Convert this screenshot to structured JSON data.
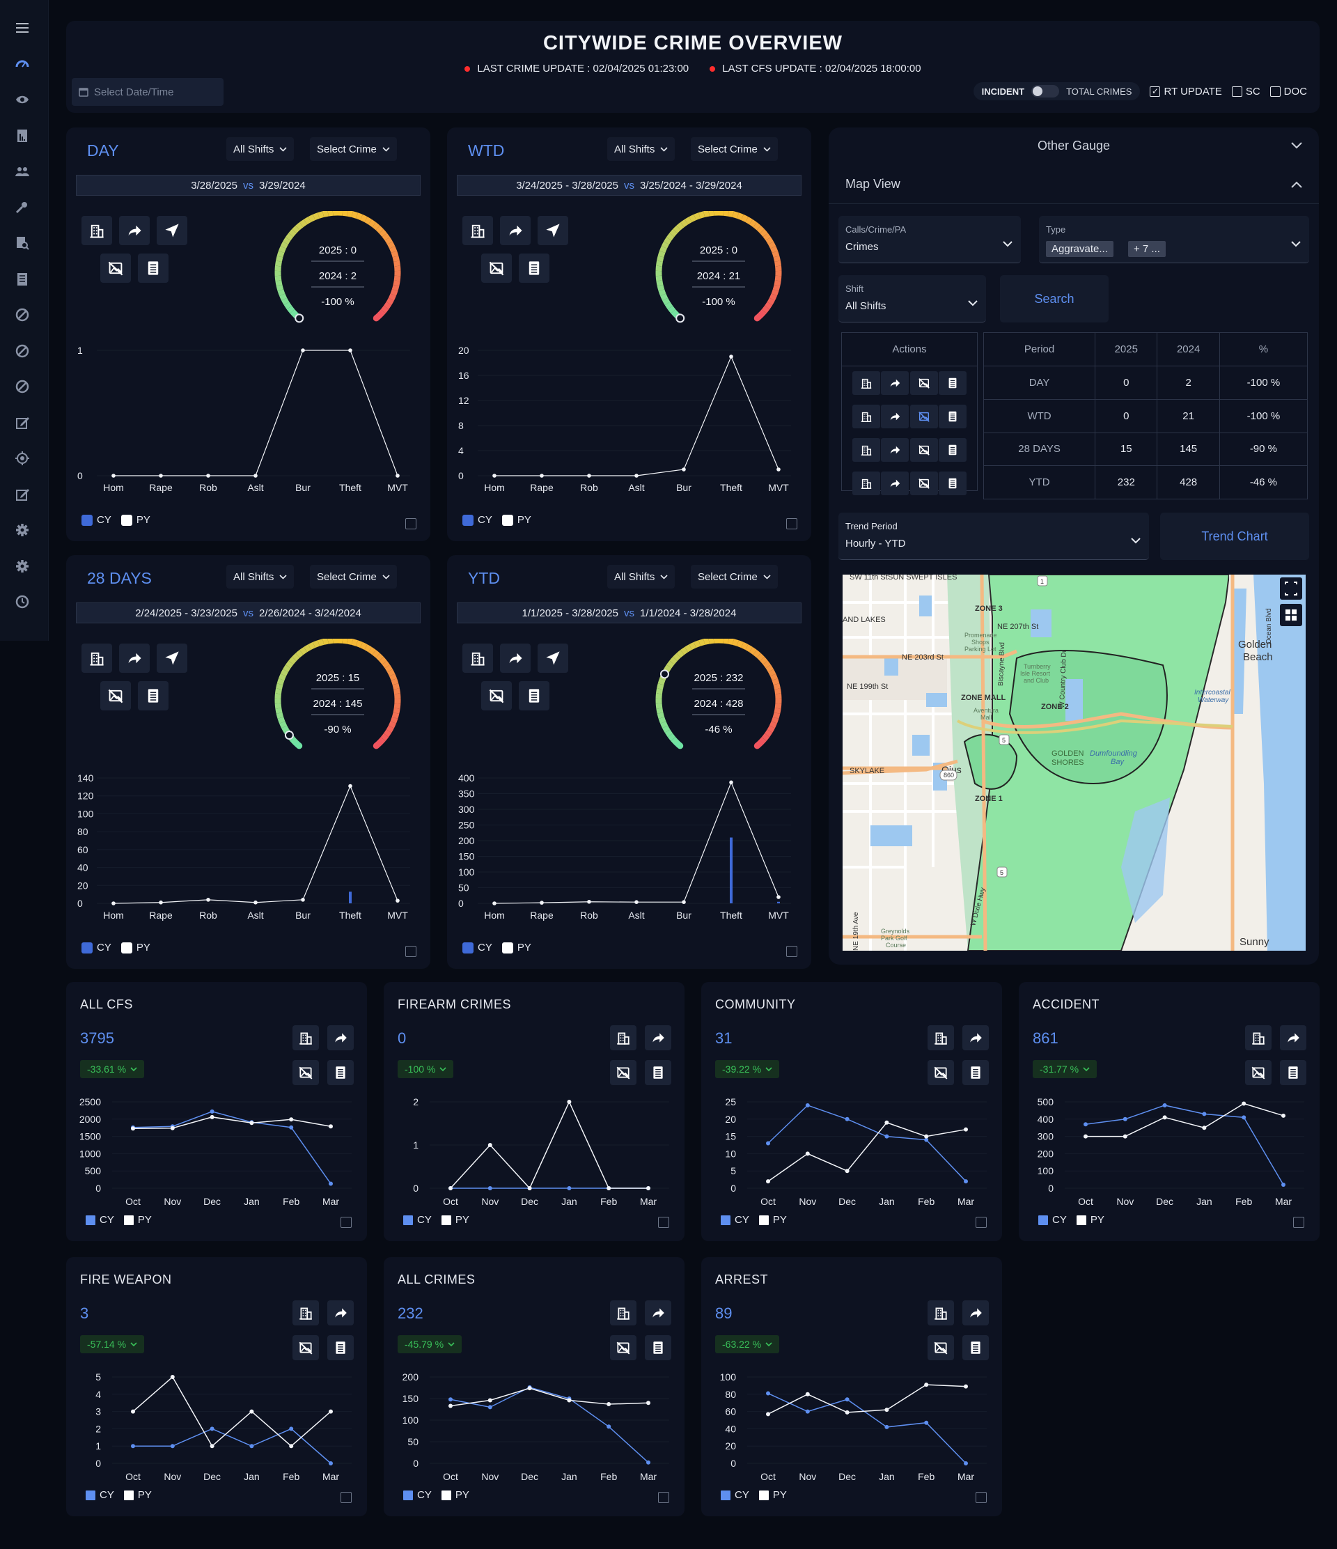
{
  "header": {
    "title": "CITYWIDE CRIME OVERVIEW",
    "last_crime_update": "LAST CRIME UPDATE : 02/04/2025 01:23:00",
    "last_cfs_update": "LAST CFS UPDATE : 02/04/2025 18:00:00",
    "date_placeholder": "Select Date/Time",
    "toggle_left": "INCIDENT",
    "toggle_right": "TOTAL CRIMES",
    "checkboxes": [
      {
        "label": "RT UPDATE",
        "checked": true
      },
      {
        "label": "SC",
        "checked": false
      },
      {
        "label": "DOC",
        "checked": false
      }
    ]
  },
  "sidebar": {
    "icons": [
      "menu-icon",
      "dashboard-icon",
      "eye-icon",
      "report-icon",
      "users-icon",
      "key-icon",
      "document-search-icon",
      "document-icon",
      "block-icon",
      "block-icon",
      "block-icon",
      "edit-icon",
      "target-icon",
      "edit-icon",
      "gear-icon",
      "gear-icon",
      "history-icon"
    ]
  },
  "colors": {
    "accent": "#5e8ff0",
    "cy": "#5e8ff0",
    "py": "#ffffff",
    "good": "#39c059",
    "gauge_green": "#6ee3a4",
    "gauge_yellow": "#f6c431",
    "gauge_red": "#f05060"
  },
  "crime_panels": [
    {
      "title": "DAY",
      "shift": "All Shifts",
      "crime": "Select Crime",
      "cur_range": "3/28/2025",
      "prev_range": "3/29/2024",
      "vs": "vs",
      "gauge": {
        "cy_label": "2025 : 0",
        "py_label": "2024 : 2",
        "pct_label": "-100 %",
        "pct": -100
      },
      "chart_data": {
        "type": "line",
        "categories": [
          "Hom",
          "Rape",
          "Rob",
          "Aslt",
          "Bur",
          "Theft",
          "MVT"
        ],
        "ylim": [
          0,
          1
        ],
        "yticks": [
          "0",
          "1"
        ],
        "series": [
          {
            "name": "CY",
            "values": [
              0,
              0,
              0,
              0,
              0,
              0,
              0
            ]
          },
          {
            "name": "PY",
            "values": [
              0,
              0,
              0,
              0,
              1,
              1,
              0
            ]
          }
        ]
      }
    },
    {
      "title": "WTD",
      "shift": "All Shifts",
      "crime": "Select Crime",
      "cur_range": "3/24/2025 - 3/28/2025",
      "prev_range": "3/25/2024 - 3/29/2024",
      "vs": "vs",
      "gauge": {
        "cy_label": "2025 : 0",
        "py_label": "2024 : 21",
        "pct_label": "-100 %",
        "pct": -100
      },
      "chart_data": {
        "type": "line",
        "categories": [
          "Hom",
          "Rape",
          "Rob",
          "Aslt",
          "Bur",
          "Theft",
          "MVT"
        ],
        "ylim": [
          0,
          20
        ],
        "yticks": [
          "0",
          "4",
          "8",
          "12",
          "16",
          "20"
        ],
        "series": [
          {
            "name": "CY",
            "values": [
              0,
              0,
              0,
              0,
              0,
              0,
              0
            ]
          },
          {
            "name": "PY",
            "values": [
              0,
              0,
              0,
              0,
              1,
              19,
              1
            ]
          }
        ]
      }
    },
    {
      "title": "28 DAYS",
      "shift": "All Shifts",
      "crime": "Select Crime",
      "cur_range": "2/24/2025 - 3/23/2025",
      "prev_range": "2/26/2024 - 3/24/2024",
      "vs": "vs",
      "gauge": {
        "cy_label": "2025 : 15",
        "py_label": "2024 : 145",
        "pct_label": "-90 %",
        "pct": -90
      },
      "chart_data": {
        "type": "line",
        "categories": [
          "Hom",
          "Rape",
          "Rob",
          "Aslt",
          "Bur",
          "Theft",
          "MVT"
        ],
        "ylim": [
          0,
          140
        ],
        "yticks": [
          "0",
          "20",
          "40",
          "60",
          "80",
          "100",
          "120",
          "140"
        ],
        "series": [
          {
            "name": "CY",
            "values": [
              0,
              0,
              0,
              0,
              0,
              13,
              0
            ]
          },
          {
            "name": "PY",
            "values": [
              0,
              1,
              4,
              1,
              4,
              131,
              3
            ]
          }
        ]
      }
    },
    {
      "title": "YTD",
      "shift": "All Shifts",
      "crime": "Select Crime",
      "cur_range": "1/1/2025 - 3/28/2025",
      "prev_range": "1/1/2024 - 3/28/2024",
      "vs": "vs",
      "gauge": {
        "cy_label": "2025 : 232",
        "py_label": "2024 : 428",
        "pct_label": "-46 %",
        "pct": -46
      },
      "chart_data": {
        "type": "line",
        "categories": [
          "Hom",
          "Rape",
          "Rob",
          "Aslt",
          "Bur",
          "Theft",
          "MVT"
        ],
        "ylim": [
          0,
          400
        ],
        "yticks": [
          "0",
          "50",
          "100",
          "150",
          "200",
          "250",
          "300",
          "350",
          "400"
        ],
        "series": [
          {
            "name": "CY",
            "values": [
              0,
              0,
              2,
              4,
              0,
              210,
              5
            ]
          },
          {
            "name": "PY",
            "values": [
              0,
              2,
              5,
              4,
              4,
              386,
              20
            ]
          }
        ]
      }
    }
  ],
  "legend": {
    "cy": "CY",
    "py": "PY"
  },
  "right_panel": {
    "other_gauge": "Other Gauge",
    "map_view": "Map View",
    "calls_label": "Calls/Crime/PA",
    "calls_value": "Crimes",
    "type_label": "Type",
    "type_chip": "Aggravate...",
    "type_more": "+ 7 ...",
    "shift_label": "Shift",
    "shift_value": "All Shifts",
    "search": "Search",
    "table": {
      "actions_header": "Actions",
      "headers": [
        "Period",
        "2025",
        "2024",
        "%"
      ],
      "rows": [
        [
          "DAY",
          "0",
          "2",
          "-100 %"
        ],
        [
          "WTD",
          "0",
          "21",
          "-100 %"
        ],
        [
          "28 DAYS",
          "15",
          "145",
          "-90 %"
        ],
        [
          "YTD",
          "232",
          "428",
          "-46 %"
        ]
      ]
    },
    "trend_label": "Trend Period",
    "trend_value": "Hourly - YTD",
    "trend_chart": "Trend Chart",
    "map_labels": [
      "SW 11th St",
      "SUN SWEPT ISLES",
      "AND LAKES",
      "NE 203rd St",
      "NE 199th St",
      "ZONE 3",
      "NE 207th St",
      "Promenade Shops Parking Lot",
      "Turnberry Isle Resort and Club",
      "ZONE MALL",
      "Aventura Mall",
      "ZONE 2",
      "Intercoastal Waterway",
      "GOLDEN SHORES",
      "Dumfoundling Bay",
      "SKYLAKE",
      "Ojus",
      "ZONE 1",
      "Greynolds Park Golf Course",
      "Golden Beach",
      "Sunny",
      "Biscayne Blvd",
      "W Country Club Dr",
      "W Dixie Hwy",
      "NE 19th Ave",
      "Ocean Blvd",
      "860",
      "5",
      "1"
    ]
  },
  "stat_cards": [
    {
      "title": "ALL CFS",
      "value": "3795",
      "change": "-33.61 %",
      "chart_data": {
        "type": "line",
        "categories": [
          "Oct",
          "Nov",
          "Dec",
          "Jan",
          "Feb",
          "Mar"
        ],
        "ylim": [
          0,
          2500
        ],
        "yticks": [
          "0",
          "500",
          "1000",
          "1500",
          "2000",
          "2500"
        ],
        "series": [
          {
            "name": "CY",
            "values": [
              1760,
              1790,
              2220,
              1910,
              1760,
              130
            ]
          },
          {
            "name": "PY",
            "values": [
              1730,
              1740,
              2060,
              1890,
              1990,
              1790
            ]
          }
        ]
      }
    },
    {
      "title": "FIREARM CRIMES",
      "value": "0",
      "change": "-100 %",
      "chart_data": {
        "type": "line",
        "categories": [
          "Oct",
          "Nov",
          "Dec",
          "Jan",
          "Feb",
          "Mar"
        ],
        "ylim": [
          0,
          2
        ],
        "yticks": [
          "0",
          "1",
          "2"
        ],
        "series": [
          {
            "name": "CY",
            "values": [
              0,
              0,
              0,
              0,
              0,
              0
            ]
          },
          {
            "name": "PY",
            "values": [
              0,
              1,
              0,
              2,
              0,
              0
            ]
          }
        ]
      }
    },
    {
      "title": "COMMUNITY",
      "value": "31",
      "change": "-39.22 %",
      "chart_data": {
        "type": "line",
        "categories": [
          "Oct",
          "Nov",
          "Dec",
          "Jan",
          "Feb",
          "Mar"
        ],
        "ylim": [
          0,
          25
        ],
        "yticks": [
          "0",
          "5",
          "10",
          "15",
          "20",
          "25"
        ],
        "series": [
          {
            "name": "CY",
            "values": [
              13,
              24,
              20,
              15,
              14,
              2
            ]
          },
          {
            "name": "PY",
            "values": [
              2,
              10,
              5,
              19,
              15,
              17
            ]
          }
        ]
      }
    },
    {
      "title": "ACCIDENT",
      "value": "861",
      "change": "-31.77 %",
      "chart_data": {
        "type": "line",
        "categories": [
          "Oct",
          "Nov",
          "Dec",
          "Jan",
          "Feb",
          "Mar"
        ],
        "ylim": [
          0,
          500
        ],
        "yticks": [
          "0",
          "100",
          "200",
          "300",
          "400",
          "500"
        ],
        "series": [
          {
            "name": "CY",
            "values": [
              370,
              400,
              480,
              430,
              410,
              20
            ]
          },
          {
            "name": "PY",
            "values": [
              300,
              300,
              410,
              350,
              490,
              420
            ]
          }
        ]
      }
    },
    {
      "title": "FIRE WEAPON",
      "value": "3",
      "change": "-57.14 %",
      "chart_data": {
        "type": "line",
        "categories": [
          "Oct",
          "Nov",
          "Dec",
          "Jan",
          "Feb",
          "Mar"
        ],
        "ylim": [
          0,
          5
        ],
        "yticks": [
          "0",
          "1",
          "2",
          "3",
          "4",
          "5"
        ],
        "series": [
          {
            "name": "CY",
            "values": [
              1,
              1,
              2,
              1,
              2,
              0
            ]
          },
          {
            "name": "PY",
            "values": [
              3,
              5,
              1,
              3,
              1,
              3
            ]
          }
        ]
      }
    },
    {
      "title": "ALL CRIMES",
      "value": "232",
      "change": "-45.79 %",
      "chart_data": {
        "type": "line",
        "categories": [
          "Oct",
          "Nov",
          "Dec",
          "Jan",
          "Feb",
          "Mar"
        ],
        "ylim": [
          0,
          200
        ],
        "yticks": [
          "0",
          "50",
          "100",
          "150",
          "200"
        ],
        "series": [
          {
            "name": "CY",
            "values": [
              148,
              130,
              176,
              150,
              85,
              2
            ]
          },
          {
            "name": "PY",
            "values": [
              133,
              146,
              174,
              146,
              137,
              140
            ]
          }
        ]
      }
    },
    {
      "title": "ARREST",
      "value": "89",
      "change": "-63.22 %",
      "chart_data": {
        "type": "line",
        "categories": [
          "Oct",
          "Nov",
          "Dec",
          "Jan",
          "Feb",
          "Mar"
        ],
        "ylim": [
          0,
          100
        ],
        "yticks": [
          "0",
          "20",
          "40",
          "60",
          "80",
          "100"
        ],
        "series": [
          {
            "name": "CY",
            "values": [
              81,
              60,
              74,
              42,
              47,
              0
            ]
          },
          {
            "name": "PY",
            "values": [
              57,
              80,
              59,
              62,
              91,
              89
            ]
          }
        ]
      }
    }
  ]
}
